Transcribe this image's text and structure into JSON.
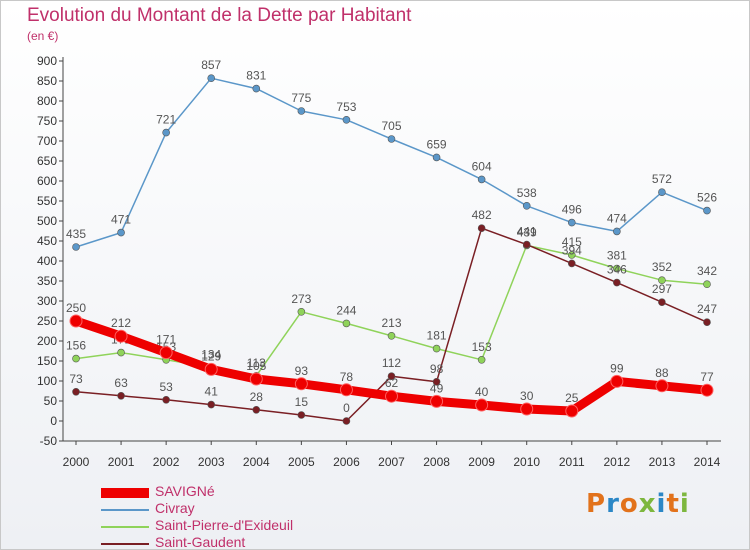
{
  "title": "Evolution du Montant de la Dette par Habitant",
  "unit": "(en €)",
  "logo_text": "Proxiti",
  "chart_data": {
    "type": "line",
    "x": [
      2000,
      2001,
      2002,
      2003,
      2004,
      2005,
      2006,
      2007,
      2008,
      2009,
      2010,
      2011,
      2012,
      2013,
      2014
    ],
    "ylim": [
      -50,
      900
    ],
    "yticks": [
      -50,
      0,
      50,
      100,
      150,
      200,
      250,
      300,
      350,
      400,
      450,
      500,
      550,
      600,
      650,
      700,
      750,
      800,
      850,
      900
    ],
    "grid": false,
    "legend_position": "bottom-left",
    "series": [
      {
        "name": "Civray",
        "color": "#5b97c9",
        "values": [
          435,
          471,
          721,
          857,
          831,
          775,
          753,
          705,
          659,
          604,
          538,
          496,
          474,
          572,
          526
        ]
      },
      {
        "name": "Saint-Pierre-d'Exideuil",
        "color": "#8fd35a",
        "values": [
          156,
          171,
          153,
          134,
          113,
          273,
          244,
          213,
          181,
          153,
          439,
          415,
          381,
          352,
          342
        ]
      },
      {
        "name": "Saint-Gaudent",
        "color": "#7a1f24",
        "values": [
          73,
          63,
          53,
          41,
          28,
          15,
          0,
          112,
          98,
          482,
          441,
          394,
          346,
          297,
          247
        ]
      },
      {
        "name": "SAVIGNé",
        "color": "#ee0000",
        "values": [
          250,
          212,
          171,
          129,
          105,
          93,
          78,
          62,
          49,
          40,
          30,
          25,
          99,
          88,
          77
        ]
      }
    ],
    "labels": [
      [
        "435",
        "471",
        "721",
        "857",
        "831",
        "775",
        "753",
        "705",
        "659",
        "604",
        "538",
        "496",
        "474",
        "572",
        "526"
      ],
      [
        "156",
        "171",
        "153",
        "134",
        "113",
        "273",
        "244",
        "213",
        "181",
        "153",
        "439",
        "415",
        "381",
        "352",
        "342"
      ],
      [
        "73",
        "63",
        "53",
        "41",
        "28",
        "15",
        "0",
        "112",
        "98",
        "482",
        "441",
        "394",
        "346",
        "297",
        "247"
      ],
      [
        "250",
        "212",
        "171",
        "129",
        "105",
        "93",
        "78",
        "62",
        "49",
        "40",
        "30",
        "25",
        "99",
        "88",
        "77"
      ]
    ]
  },
  "legend": [
    {
      "name": "SAVIGNé",
      "color": "#ee0000"
    },
    {
      "name": "Civray",
      "color": "#5b97c9"
    },
    {
      "name": "Saint-Pierre-d'Exideuil",
      "color": "#8fd35a"
    },
    {
      "name": "Saint-Gaudent",
      "color": "#7a1f24"
    }
  ]
}
